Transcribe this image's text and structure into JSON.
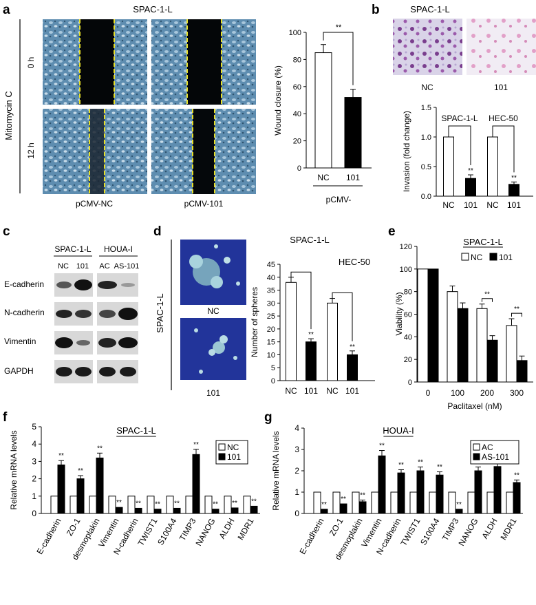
{
  "panel_labels": [
    "a",
    "b",
    "c",
    "d",
    "e",
    "f",
    "g"
  ],
  "panel_a": {
    "title": "SPAC-1-L",
    "side_label": "Mitomycin C",
    "row_labels": [
      "0 h",
      "12 h"
    ],
    "col_labels": [
      "pCMV-NC",
      "pCMV-101"
    ]
  },
  "panel_b": {
    "title": "SPAC-1-L",
    "image_labels": [
      "NC",
      "101"
    ]
  },
  "panel_c": {
    "group_labels": [
      "SPAC-1-L",
      "HOUA-I"
    ],
    "lane_labels": [
      "NC",
      "101",
      "AC",
      "AS-101"
    ],
    "proteins": [
      "E-cadherin",
      "N-cadherin",
      "Vimentin",
      "GAPDH"
    ]
  },
  "panel_d": {
    "side_label": "SPAC-1-L",
    "image_labels": [
      "NC",
      "101"
    ]
  },
  "chart_data": [
    {
      "id": "a",
      "type": "bar",
      "categories": [
        "NC",
        "101"
      ],
      "values": [
        85,
        52
      ],
      "errors": [
        6,
        6
      ],
      "colors": [
        "#ffffff",
        "#000000"
      ],
      "ylabel": "Wound closure (%)",
      "xlabel": "pCMV-",
      "yticks": [
        "0",
        "20",
        "40",
        "60",
        "80",
        "100"
      ],
      "ylim": [
        0,
        100
      ],
      "significance": "**"
    },
    {
      "id": "b",
      "type": "bar",
      "groups": [
        "SPAC-1-L",
        "HEC-50"
      ],
      "categories": [
        "NC",
        "101",
        "NC",
        "101"
      ],
      "values": [
        1.0,
        0.3,
        1.0,
        0.2
      ],
      "errors": [
        0,
        0.06,
        0,
        0.04
      ],
      "colors": [
        "#ffffff",
        "#000000",
        "#ffffff",
        "#000000"
      ],
      "ylabel": "Invasion (fold change)",
      "yticks": [
        "0.0",
        "0.5",
        "1.0",
        "1.5"
      ],
      "ylim": [
        0,
        1.5
      ],
      "significance": "**"
    },
    {
      "id": "d",
      "type": "bar",
      "groups": [
        "SPAC-1-L",
        "HEC-50"
      ],
      "categories": [
        "NC",
        "101",
        "NC",
        "101"
      ],
      "values": [
        38,
        15,
        30,
        10
      ],
      "errors": [
        2,
        1.2,
        1.8,
        1.5
      ],
      "colors": [
        "#ffffff",
        "#000000",
        "#ffffff",
        "#000000"
      ],
      "ylabel": "Number of spheres",
      "yticks": [
        "0",
        "5",
        "10",
        "15",
        "20",
        "25",
        "30",
        "35",
        "40",
        "45"
      ],
      "ylim": [
        0,
        45
      ],
      "significance": "**"
    },
    {
      "id": "e",
      "type": "bar",
      "title": "SPAC-1-L",
      "categories": [
        "0",
        "100",
        "200",
        "300"
      ],
      "series": [
        {
          "name": "NC",
          "values": [
            100,
            80,
            65,
            50
          ],
          "errors": [
            0,
            5,
            4,
            6
          ],
          "color": "#ffffff"
        },
        {
          "name": "101",
          "values": [
            100,
            65,
            37,
            19
          ],
          "errors": [
            0,
            5,
            4,
            4
          ],
          "color": "#000000"
        }
      ],
      "ylabel": "Viability (%)",
      "xlabel": "Paclitaxel (nM)",
      "yticks": [
        "0",
        "20",
        "40",
        "60",
        "80",
        "100",
        "120"
      ],
      "ylim": [
        0,
        120
      ],
      "significance": "**"
    },
    {
      "id": "f",
      "type": "bar",
      "title": "SPAC-1-L",
      "categories": [
        "E-cadherin",
        "ZO-1",
        "desmoplakin",
        "Vimentin",
        "N-cadherin",
        "TWIST1",
        "S100A4",
        "TIMP3",
        "NANOG",
        "ALDH",
        "MDR1"
      ],
      "series": [
        {
          "name": "NC",
          "values": [
            1,
            1,
            1,
            1,
            1,
            1,
            1,
            1,
            1,
            1,
            1
          ],
          "color": "#ffffff"
        },
        {
          "name": "101",
          "values": [
            2.8,
            2.0,
            3.2,
            0.35,
            0.3,
            0.25,
            0.3,
            3.4,
            0.25,
            0.32,
            0.42
          ],
          "errors": [
            0.25,
            0.18,
            0.28,
            0,
            0,
            0,
            0,
            0.3,
            0,
            0,
            0
          ],
          "color": "#000000"
        }
      ],
      "ylabel": "Relative mRNA levels",
      "yticks": [
        "0",
        "1",
        "2",
        "3",
        "4",
        "5"
      ],
      "ylim": [
        0,
        5
      ],
      "significance": "**"
    },
    {
      "id": "g",
      "type": "bar",
      "title": "HOUA-I",
      "categories": [
        "E-cadherin",
        "ZO-1",
        "desmoplakin",
        "Vimentin",
        "N-cadherin",
        "TWIST1",
        "S100A4",
        "TIMP3",
        "NANOG",
        "ALDH",
        "MDR1"
      ],
      "series": [
        {
          "name": "AC",
          "values": [
            1,
            1,
            1,
            1,
            1,
            1,
            1,
            1,
            1,
            1,
            1
          ],
          "color": "#ffffff"
        },
        {
          "name": "AS-101",
          "values": [
            0.2,
            0.45,
            0.55,
            2.7,
            1.9,
            2.0,
            1.8,
            0.2,
            2.0,
            2.2,
            1.45
          ],
          "errors": [
            0,
            0,
            0.08,
            0.25,
            0.15,
            0.18,
            0.15,
            0,
            0.18,
            0.2,
            0.12
          ],
          "color": "#000000"
        }
      ],
      "ylabel": "Relative mRNA levels",
      "yticks": [
        "0",
        "1",
        "2",
        "3",
        "4"
      ],
      "ylim": [
        0,
        4
      ],
      "significance": "**"
    }
  ]
}
